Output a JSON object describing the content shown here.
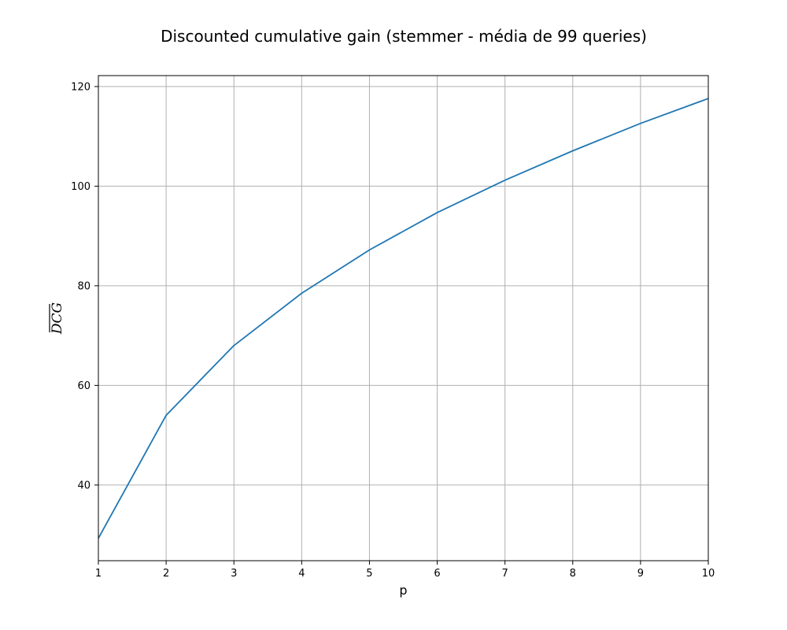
{
  "chart_data": {
    "type": "line",
    "title": "Discounted cumulative gain (stemmer - média de 99 queries)",
    "xlabel": "p",
    "ylabel": "DCG",
    "ylabel_overline": true,
    "xlim": [
      1,
      10
    ],
    "ylim": [
      24.8,
      122.2
    ],
    "xticks": [
      1,
      2,
      3,
      4,
      5,
      6,
      7,
      8,
      9,
      10
    ],
    "yticks": [
      40,
      60,
      80,
      100,
      120
    ],
    "grid": true,
    "series": [
      {
        "color": "#1f77b4",
        "x": [
          1,
          2,
          3,
          4,
          5,
          6,
          7,
          8,
          9,
          10
        ],
        "y": [
          29.3,
          54.0,
          68.0,
          78.5,
          87.2,
          94.7,
          101.2,
          107.1,
          112.6,
          117.6
        ]
      }
    ]
  }
}
